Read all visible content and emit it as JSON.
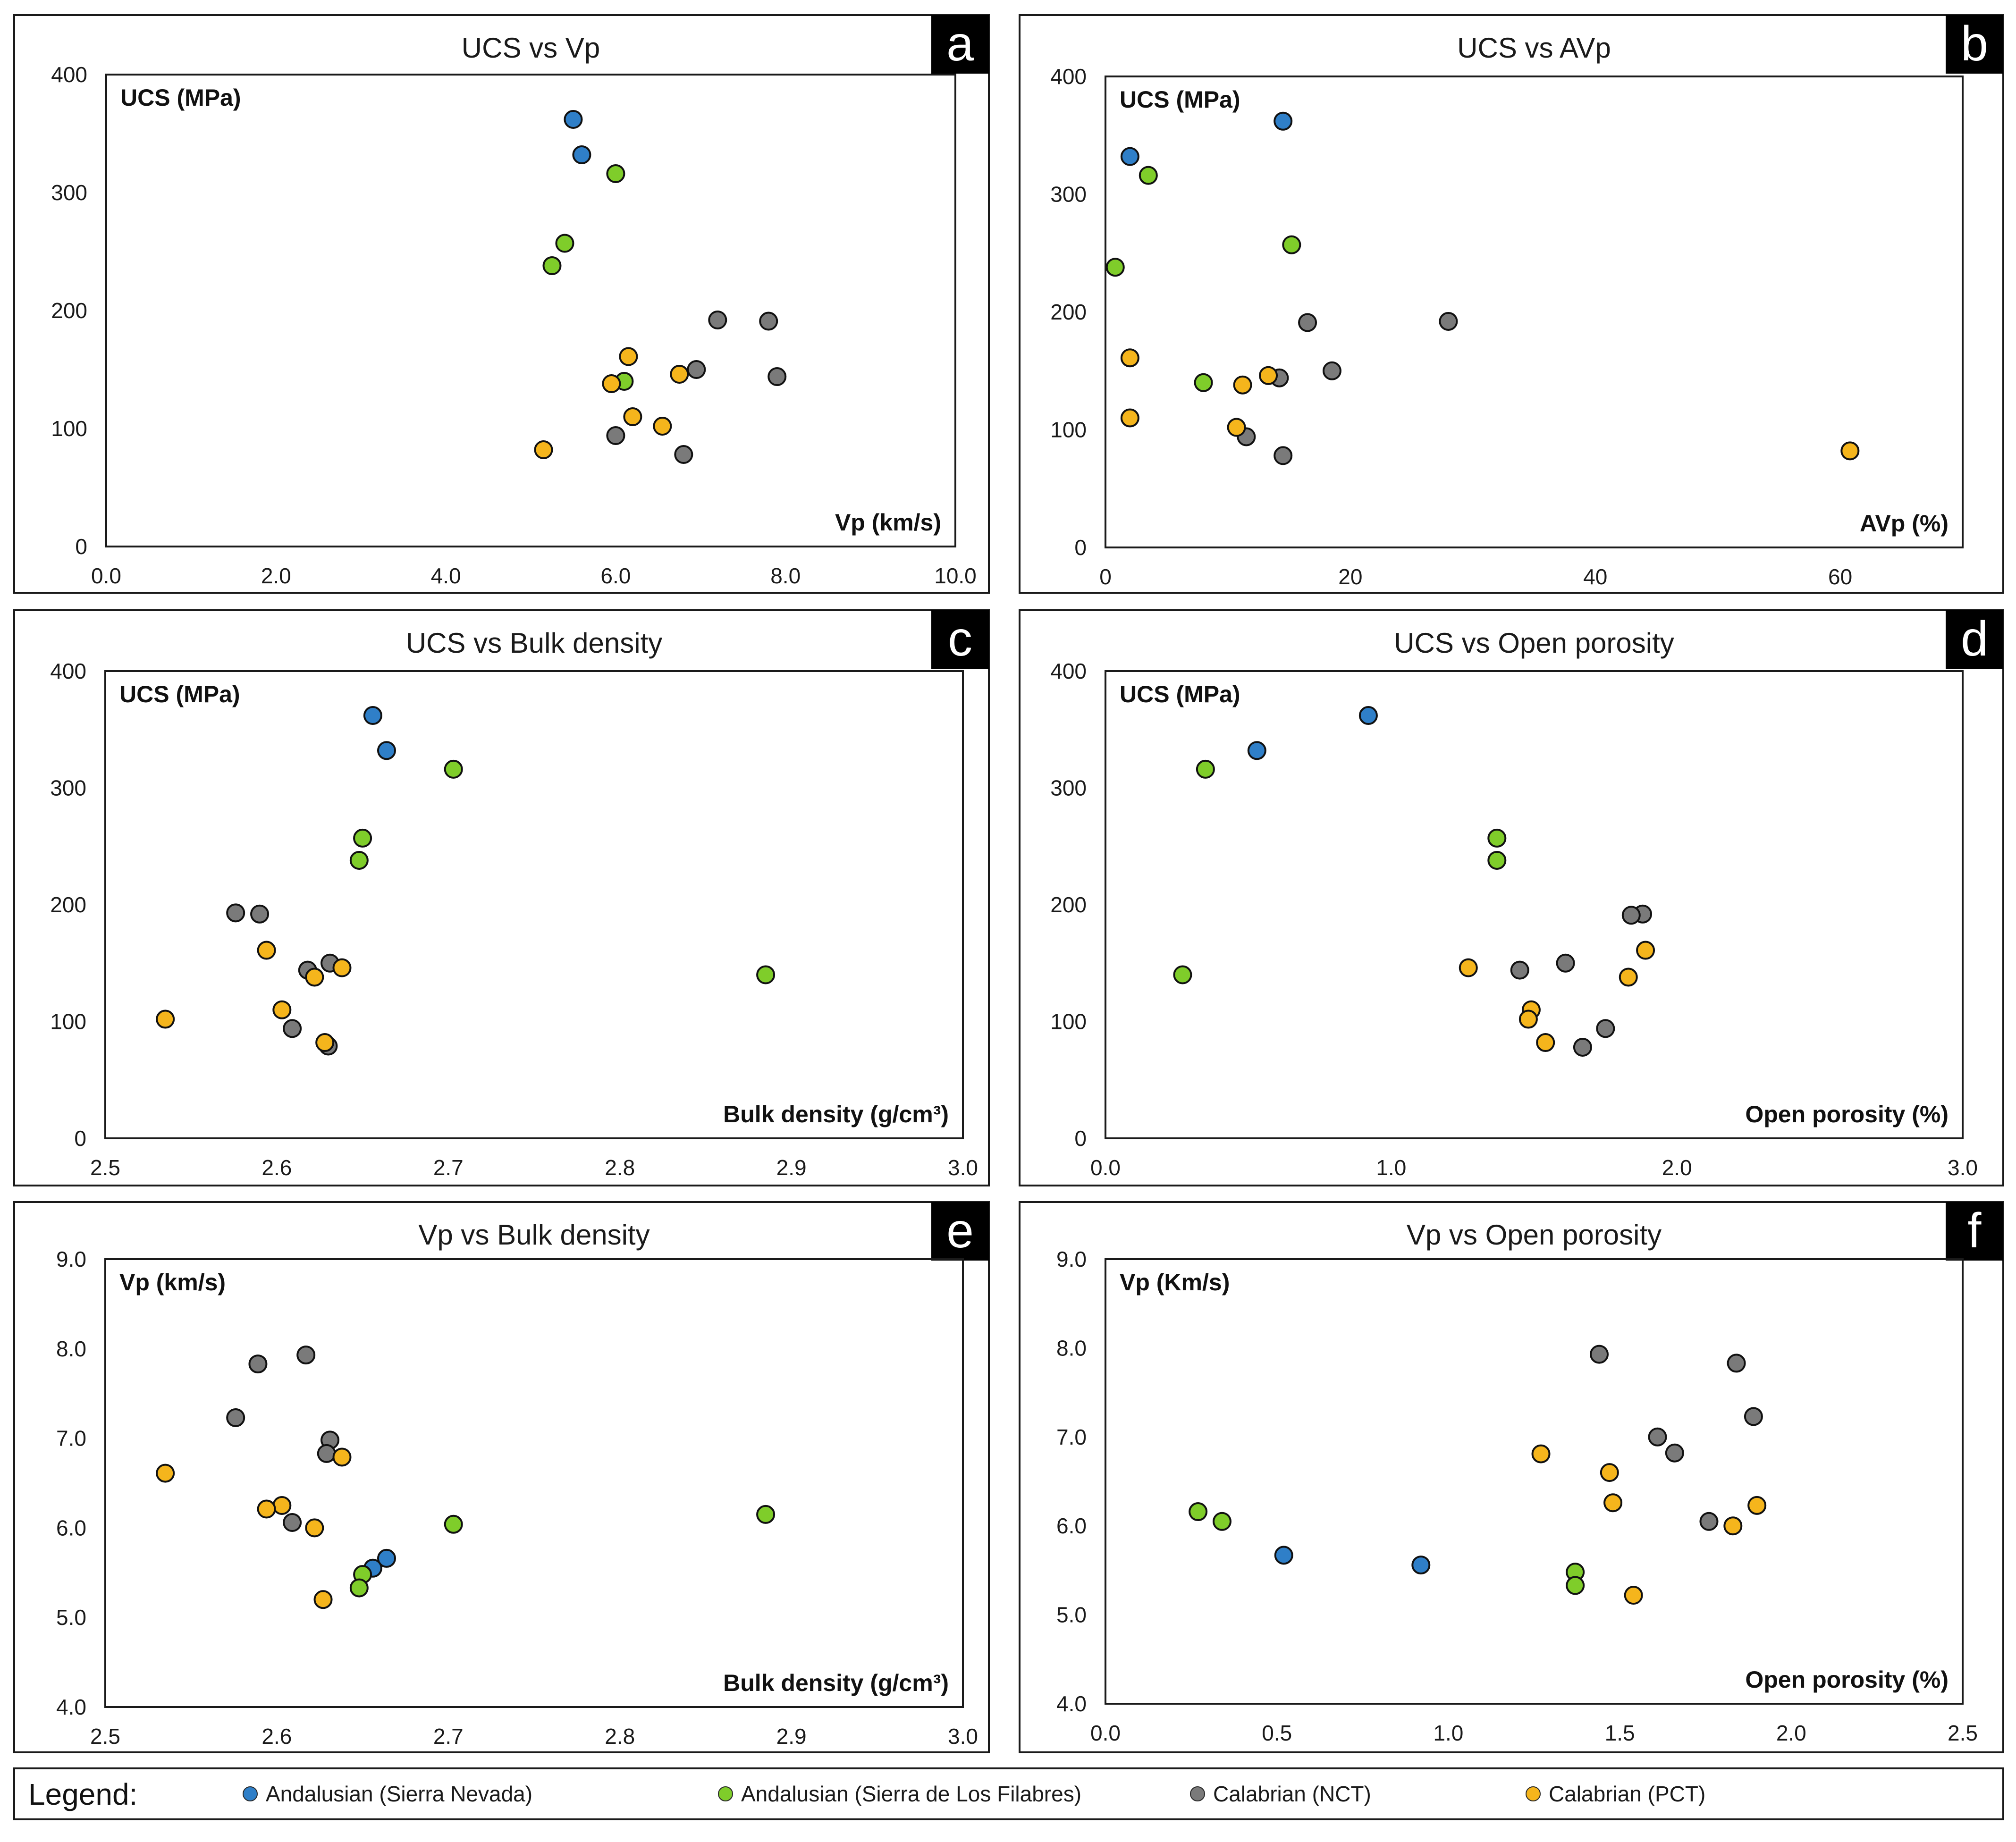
{
  "legend": {
    "title": "Legend:",
    "items": [
      {
        "key": "sn",
        "label": "Andalusian (Sierra Nevada)",
        "color": "#2f7fc8"
      },
      {
        "key": "sf",
        "label": "Andalusian (Sierra de Los Filabres)",
        "color": "#7fcd2a"
      },
      {
        "key": "nct",
        "label": "Calabrian (NCT)",
        "color": "#7a7a7a"
      },
      {
        "key": "pct",
        "label": "Calabrian (PCT)",
        "color": "#f5b51c"
      }
    ]
  },
  "chart_data": [
    {
      "id": "a",
      "letter": "a",
      "type": "scatter",
      "title": "UCS vs Vp",
      "xlabel": "Vp (km/s)",
      "ylabel": "UCS (MPa)",
      "xlim": [
        0,
        10
      ],
      "ylim": [
        0,
        400
      ],
      "xticks": [
        "0.0",
        "2.0",
        "4.0",
        "6.0",
        "8.0",
        "10.0"
      ],
      "yticks": [
        "0",
        "100",
        "200",
        "300",
        "400"
      ],
      "series": [
        {
          "group": "sn",
          "points": [
            [
              5.5,
              362
            ],
            [
              5.6,
              332
            ]
          ]
        },
        {
          "group": "sf",
          "points": [
            [
              6.0,
              316
            ],
            [
              5.4,
              257
            ],
            [
              5.25,
              238
            ],
            [
              6.1,
              140
            ]
          ]
        },
        {
          "group": "nct",
          "points": [
            [
              7.2,
              192
            ],
            [
              7.8,
              191
            ],
            [
              6.95,
              150
            ],
            [
              7.9,
              144
            ],
            [
              6.0,
              94
            ],
            [
              6.8,
              78
            ]
          ]
        },
        {
          "group": "pct",
          "points": [
            [
              6.15,
              161
            ],
            [
              5.95,
              138
            ],
            [
              6.75,
              146
            ],
            [
              6.2,
              110
            ],
            [
              6.55,
              102
            ],
            [
              5.15,
              82
            ]
          ]
        }
      ]
    },
    {
      "id": "b",
      "letter": "b",
      "type": "scatter",
      "title": "UCS vs AVp",
      "xlabel": "AVp (%)",
      "ylabel": "UCS (MPa)",
      "xlim": [
        0,
        70
      ],
      "ylim": [
        0,
        400
      ],
      "xticks": [
        "0",
        "20",
        "40",
        "60"
      ],
      "yticks": [
        "0",
        "100",
        "200",
        "300",
        "400"
      ],
      "series": [
        {
          "group": "sn",
          "points": [
            [
              14.5,
              362
            ],
            [
              2.0,
              332
            ]
          ]
        },
        {
          "group": "sf",
          "points": [
            [
              3.5,
              316
            ],
            [
              15.2,
              257
            ],
            [
              0.8,
              238
            ],
            [
              8.0,
              140
            ]
          ]
        },
        {
          "group": "nct",
          "points": [
            [
              28.0,
              192
            ],
            [
              16.5,
              191
            ],
            [
              18.5,
              150
            ],
            [
              14.2,
              144
            ],
            [
              11.5,
              94
            ],
            [
              14.5,
              78
            ]
          ]
        },
        {
          "group": "pct",
          "points": [
            [
              2.0,
              161
            ],
            [
              11.2,
              138
            ],
            [
              13.3,
              146
            ],
            [
              2.0,
              110
            ],
            [
              10.7,
              102
            ],
            [
              60.8,
              82
            ]
          ]
        }
      ]
    },
    {
      "id": "c",
      "letter": "c",
      "type": "scatter",
      "title": "UCS vs Bulk density",
      "xlabel": "Bulk density (g/cm³)",
      "ylabel": "UCS (MPa)",
      "xlim": [
        2.5,
        3.0
      ],
      "ylim": [
        0,
        400
      ],
      "xticks": [
        "2.5",
        "2.6",
        "2.7",
        "2.8",
        "2.9",
        "3.0"
      ],
      "yticks": [
        "0",
        "100",
        "200",
        "300",
        "400"
      ],
      "series": [
        {
          "group": "sn",
          "points": [
            [
              2.656,
              362
            ],
            [
              2.664,
              332
            ]
          ]
        },
        {
          "group": "sf",
          "points": [
            [
              2.703,
              316
            ],
            [
              2.65,
              257
            ],
            [
              2.648,
              238
            ],
            [
              2.885,
              140
            ]
          ]
        },
        {
          "group": "nct",
          "points": [
            [
              2.576,
              193
            ],
            [
              2.59,
              192
            ],
            [
              2.631,
              150
            ],
            [
              2.618,
              144
            ],
            [
              2.609,
              94
            ],
            [
              2.63,
              79
            ]
          ]
        },
        {
          "group": "pct",
          "points": [
            [
              2.594,
              161
            ],
            [
              2.622,
              138
            ],
            [
              2.638,
              146
            ],
            [
              2.603,
              110
            ],
            [
              2.535,
              102
            ],
            [
              2.628,
              82
            ]
          ]
        }
      ]
    },
    {
      "id": "d",
      "letter": "d",
      "type": "scatter",
      "title": "UCS vs Open porosity",
      "xlabel": "Open porosity (%)",
      "ylabel": "UCS (MPa)",
      "xlim": [
        0,
        3.0
      ],
      "ylim": [
        0,
        400
      ],
      "xticks": [
        "0.0",
        "1.0",
        "2.0",
        "3.0"
      ],
      "yticks": [
        "0",
        "100",
        "200",
        "300",
        "400"
      ],
      "series": [
        {
          "group": "sn",
          "points": [
            [
              0.92,
              362
            ],
            [
              0.53,
              332
            ]
          ]
        },
        {
          "group": "sf",
          "points": [
            [
              0.35,
              316
            ],
            [
              1.37,
              257
            ],
            [
              1.37,
              238
            ],
            [
              0.27,
              140
            ]
          ]
        },
        {
          "group": "nct",
          "points": [
            [
              1.88,
              192
            ],
            [
              1.84,
              191
            ],
            [
              1.61,
              150
            ],
            [
              1.45,
              144
            ],
            [
              1.75,
              94
            ],
            [
              1.67,
              78
            ]
          ]
        },
        {
          "group": "pct",
          "points": [
            [
              1.89,
              161
            ],
            [
              1.83,
              138
            ],
            [
              1.27,
              146
            ],
            [
              1.49,
              110
            ],
            [
              1.48,
              102
            ],
            [
              1.54,
              82
            ]
          ]
        }
      ]
    },
    {
      "id": "e",
      "letter": "e",
      "type": "scatter",
      "title": "Vp vs Bulk density",
      "xlabel": "Bulk density (g/cm³)",
      "ylabel": "Vp (km/s)",
      "xlim": [
        2.5,
        3.0
      ],
      "ylim": [
        4.0,
        9.0
      ],
      "xticks": [
        "2.5",
        "2.6",
        "2.7",
        "2.8",
        "2.9",
        "3.0"
      ],
      "yticks": [
        "4.0",
        "5.0",
        "6.0",
        "7.0",
        "8.0",
        "9.0"
      ],
      "series": [
        {
          "group": "sn",
          "points": [
            [
              2.664,
              5.66
            ],
            [
              2.656,
              5.55
            ]
          ]
        },
        {
          "group": "sf",
          "points": [
            [
              2.885,
              6.15
            ],
            [
              2.703,
              6.04
            ],
            [
              2.65,
              5.48
            ],
            [
              2.648,
              5.33
            ]
          ]
        },
        {
          "group": "nct",
          "points": [
            [
              2.617,
              7.93
            ],
            [
              2.589,
              7.83
            ],
            [
              2.576,
              7.23
            ],
            [
              2.631,
              6.98
            ],
            [
              2.629,
              6.83
            ],
            [
              2.609,
              6.06
            ]
          ]
        },
        {
          "group": "pct",
          "points": [
            [
              2.638,
              6.79
            ],
            [
              2.535,
              6.61
            ],
            [
              2.603,
              6.25
            ],
            [
              2.594,
              6.21
            ],
            [
              2.622,
              6.0
            ],
            [
              2.627,
              5.2
            ]
          ]
        }
      ]
    },
    {
      "id": "f",
      "letter": "f",
      "type": "scatter",
      "title": "Vp vs Open porosity",
      "xlabel": "Open porosity (%)",
      "ylabel": "Vp (Km/s)",
      "xlim": [
        0,
        2.5
      ],
      "ylim": [
        4.0,
        9.0
      ],
      "xticks": [
        "0.0",
        "0.5",
        "1.0",
        "1.5",
        "2.0",
        "2.5"
      ],
      "yticks": [
        "4.0",
        "5.0",
        "6.0",
        "7.0",
        "8.0",
        "9.0"
      ],
      "series": [
        {
          "group": "sn",
          "points": [
            [
              0.52,
              5.67
            ],
            [
              0.92,
              5.56
            ]
          ]
        },
        {
          "group": "sf",
          "points": [
            [
              0.27,
              6.16
            ],
            [
              0.34,
              6.05
            ],
            [
              1.37,
              5.48
            ],
            [
              1.37,
              5.33
            ]
          ]
        },
        {
          "group": "nct",
          "points": [
            [
              1.44,
              7.93
            ],
            [
              1.84,
              7.83
            ],
            [
              1.89,
              7.23
            ],
            [
              1.61,
              7.0
            ],
            [
              1.66,
              6.82
            ],
            [
              1.76,
              6.05
            ]
          ]
        },
        {
          "group": "pct",
          "points": [
            [
              1.27,
              6.81
            ],
            [
              1.47,
              6.6
            ],
            [
              1.48,
              6.26
            ],
            [
              1.9,
              6.23
            ],
            [
              1.83,
              6.0
            ],
            [
              1.54,
              5.22
            ]
          ]
        }
      ]
    }
  ]
}
